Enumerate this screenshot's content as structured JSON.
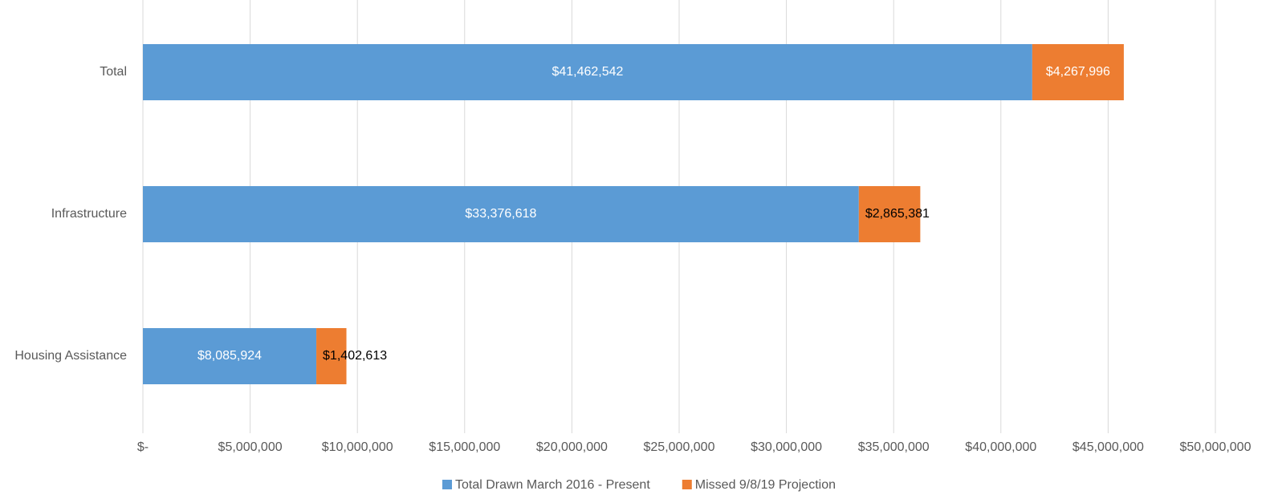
{
  "chart_data": {
    "type": "stacked_barh",
    "categories": [
      "Total",
      "Infrastructure",
      "Housing Assistance"
    ],
    "series": [
      {
        "name": "Total Drawn March 2016 - Present",
        "color": "#5b9bd5",
        "values": [
          41462542,
          33376618,
          8085924
        ],
        "value_labels": [
          "$41,462,542",
          "$33,376,618",
          "$8,085,924"
        ]
      },
      {
        "name": "Missed 9/8/19 Projection",
        "color": "#ed7d31",
        "values": [
          4267996,
          2865381,
          1402613
        ],
        "value_labels": [
          "$4,267,996",
          "$2,865,381",
          "$1,402,613"
        ]
      }
    ],
    "xlim": [
      0,
      50000000
    ],
    "xticks": [
      {
        "value": 0,
        "label": "$-"
      },
      {
        "value": 5000000,
        "label": "$5,000,000"
      },
      {
        "value": 10000000,
        "label": "$10,000,000"
      },
      {
        "value": 15000000,
        "label": "$15,000,000"
      },
      {
        "value": 20000000,
        "label": "$20,000,000"
      },
      {
        "value": 25000000,
        "label": "$25,000,000"
      },
      {
        "value": 30000000,
        "label": "$30,000,000"
      },
      {
        "value": 35000000,
        "label": "$35,000,000"
      },
      {
        "value": 40000000,
        "label": "$40,000,000"
      },
      {
        "value": 45000000,
        "label": "$45,000,000"
      },
      {
        "value": 50000000,
        "label": "$50,000,000"
      }
    ],
    "grid": true,
    "legend": "bottom"
  }
}
